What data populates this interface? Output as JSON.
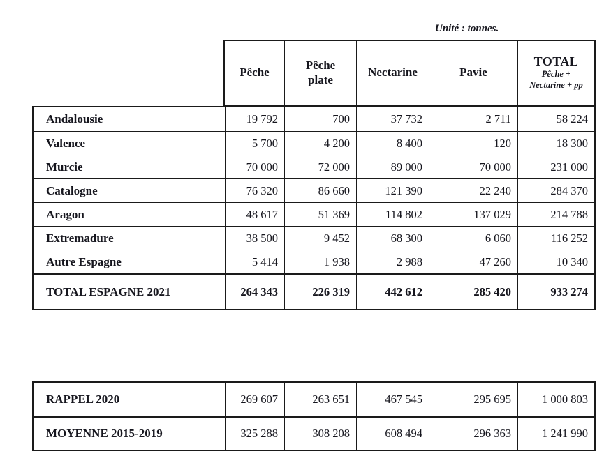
{
  "unit_label": "Unité : tonnes.",
  "production_table": {
    "columns": [
      {
        "label": "Pêche"
      },
      {
        "label": "Pêche plate"
      },
      {
        "label": "Nectarine"
      },
      {
        "label": "Pavie"
      },
      {
        "label": "TOTAL",
        "subtitle_line1": "Pêche +",
        "subtitle_line2": "Nectarine + pp"
      }
    ],
    "rows": [
      {
        "label": "Andalousie",
        "cells": [
          "19 792",
          "700",
          "37 732",
          "2 711",
          "58 224"
        ]
      },
      {
        "label": "Valence",
        "cells": [
          "5 700",
          "4 200",
          "8 400",
          "120",
          "18 300"
        ]
      },
      {
        "label": "Murcie",
        "cells": [
          "70 000",
          "72 000",
          "89 000",
          "70 000",
          "231 000"
        ]
      },
      {
        "label": "Catalogne",
        "cells": [
          "76 320",
          "86 660",
          "121 390",
          "22 240",
          "284 370"
        ]
      },
      {
        "label": "Aragon",
        "cells": [
          "48 617",
          "51 369",
          "114 802",
          "137 029",
          "214 788"
        ]
      },
      {
        "label": "Extremadure",
        "cells": [
          "38 500",
          "9 452",
          "68 300",
          "6 060",
          "116 252"
        ]
      },
      {
        "label": "Autre Espagne",
        "cells": [
          "5 414",
          "1 938",
          "2 988",
          "47 260",
          "10 340"
        ]
      }
    ],
    "total_row": {
      "label": "TOTAL ESPAGNE 2021",
      "cells": [
        "264 343",
        "226 319",
        "442 612",
        "285 420",
        "933 274"
      ]
    }
  },
  "recap_table": {
    "rows": [
      {
        "label": "RAPPEL 2020",
        "cells": [
          "269 607",
          "263 651",
          "467 545",
          "295 695",
          "1 000 803"
        ]
      },
      {
        "label": "MOYENNE 2015-2019",
        "cells": [
          "325 288",
          "308 208",
          "608 494",
          "296 363",
          "1 241 990"
        ]
      }
    ]
  },
  "colors": {
    "text": "#16161e",
    "border": "#1a1a1a",
    "background": "#ffffff"
  }
}
